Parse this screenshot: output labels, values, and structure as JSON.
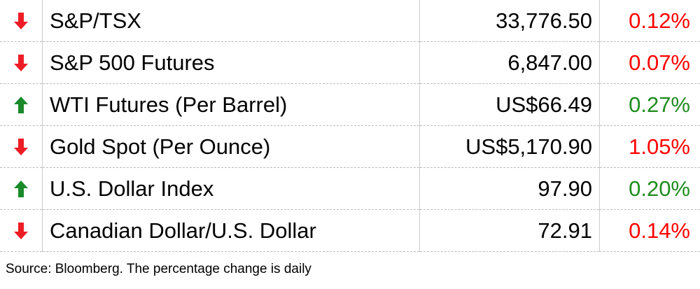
{
  "colors": {
    "down": "#ee1c25",
    "up": "#1a8a2a",
    "down_text": "#ff0000",
    "up_text": "#1e8c1e"
  },
  "rows": [
    {
      "name": "S&P/TSX",
      "value": "33,776.50",
      "change": "0.12%",
      "direction": "down"
    },
    {
      "name": "S&P 500 Futures",
      "value": "6,847.00",
      "change": "0.07%",
      "direction": "down"
    },
    {
      "name": "WTI Futures (Per Barrel)",
      "value": "US$66.49",
      "change": "0.27%",
      "direction": "up"
    },
    {
      "name": "Gold Spot (Per Ounce)",
      "value": "US$5,170.90",
      "change": "1.05%",
      "direction": "down"
    },
    {
      "name": "U.S. Dollar Index",
      "value": "97.90",
      "change": "0.20%",
      "direction": "up"
    },
    {
      "name": "Canadian Dollar/U.S. Dollar",
      "value": "72.91",
      "change": "0.14%",
      "direction": "down"
    }
  ],
  "source": "Source: Bloomberg. The percentage change is daily"
}
